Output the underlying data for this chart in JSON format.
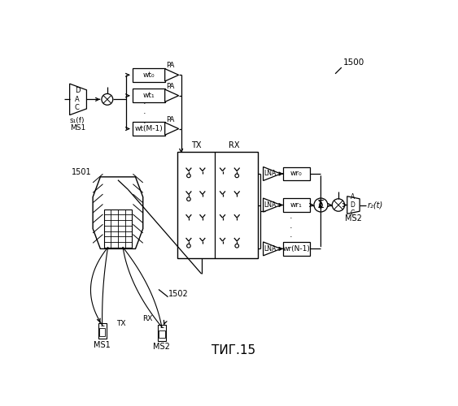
{
  "title": "ΤИГ.15",
  "label_1500": "1500",
  "label_1501": "1501",
  "label_1502": "1502",
  "bg_color": "#ffffff",
  "line_color": "#000000",
  "fig_width": 5.63,
  "fig_height": 5.0,
  "dpi": 100
}
